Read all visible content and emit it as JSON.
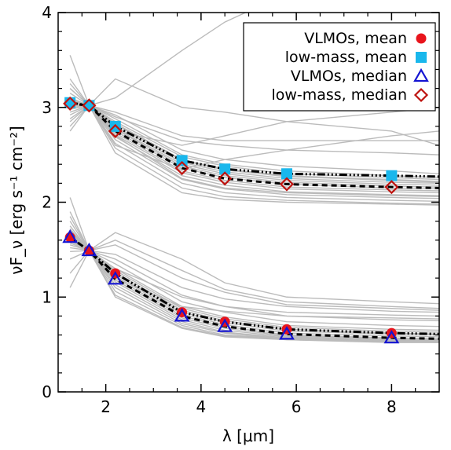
{
  "chart_data": {
    "type": "line",
    "title": "",
    "xlabel": "λ [μm]",
    "ylabel": "νF_ν [erg s⁻¹ cm⁻²]",
    "xlim": [
      1.0,
      9.0
    ],
    "ylim": [
      0.0,
      4.0
    ],
    "xticks": [
      2,
      4,
      6,
      8
    ],
    "yticks": [
      0,
      1,
      2,
      3,
      4
    ],
    "grid": false,
    "legend_position": "top-right",
    "x": [
      1.25,
      1.65,
      2.2,
      3.6,
      4.5,
      5.8,
      8.0
    ],
    "series": [
      {
        "name": "VLMOs, mean",
        "group": "VLMOs",
        "stat": "mean",
        "marker": "circle",
        "color": "#e8141c",
        "line_style": "dash-dot",
        "values": [
          1.63,
          1.49,
          1.25,
          0.84,
          0.74,
          0.66,
          0.62
        ]
      },
      {
        "name": "low-mass, mean",
        "group": "low-mass",
        "stat": "mean",
        "marker": "square",
        "color": "#19b7ec",
        "line_style": "dash-dot",
        "values": [
          3.05,
          3.02,
          2.8,
          2.44,
          2.35,
          2.3,
          2.28
        ]
      },
      {
        "name": "VLMOs, median",
        "group": "VLMOs",
        "stat": "median",
        "marker": "triangle",
        "color": "#1414d2",
        "line_style": "dashed",
        "values": [
          1.63,
          1.49,
          1.19,
          0.8,
          0.69,
          0.61,
          0.57
        ]
      },
      {
        "name": "low-mass, median",
        "group": "low-mass",
        "stat": "median",
        "marker": "diamond",
        "color": "#be1410",
        "line_style": "dashed",
        "values": [
          3.04,
          3.02,
          2.75,
          2.36,
          2.25,
          2.19,
          2.16
        ]
      }
    ],
    "individual_sources": {
      "color": "#bbbbbb",
      "low_mass_values": [
        [
          3.55,
          3.02,
          3.3,
          3.0,
          2.95,
          2.85,
          2.75,
          2.6
        ],
        [
          3.3,
          3.02,
          3.1,
          3.6,
          3.9,
          4.2,
          4.6,
          4.9
        ],
        [
          3.2,
          3.02,
          2.92,
          2.55,
          2.45,
          2.38,
          2.33,
          2.3
        ],
        [
          3.15,
          3.02,
          2.88,
          2.5,
          2.4,
          2.33,
          2.28,
          2.26
        ],
        [
          3.1,
          3.02,
          2.85,
          2.48,
          2.38,
          2.3,
          2.26,
          2.24
        ],
        [
          3.1,
          3.02,
          2.83,
          2.45,
          2.35,
          2.28,
          2.24,
          2.22
        ],
        [
          3.08,
          3.02,
          2.82,
          2.44,
          2.34,
          2.27,
          2.23,
          2.21
        ],
        [
          3.06,
          3.02,
          2.8,
          2.42,
          2.32,
          2.25,
          2.21,
          2.2
        ],
        [
          3.05,
          3.02,
          2.78,
          2.4,
          2.3,
          2.23,
          2.19,
          2.18
        ],
        [
          3.05,
          3.02,
          2.77,
          2.38,
          2.28,
          2.21,
          2.17,
          2.16
        ],
        [
          3.04,
          3.02,
          2.75,
          2.36,
          2.26,
          2.19,
          2.15,
          2.14
        ],
        [
          3.03,
          3.02,
          2.73,
          2.33,
          2.23,
          2.16,
          2.13,
          2.12
        ],
        [
          3.02,
          3.02,
          2.71,
          2.31,
          2.21,
          2.14,
          2.11,
          2.1
        ],
        [
          3.0,
          3.02,
          2.69,
          2.28,
          2.18,
          2.11,
          2.08,
          2.07
        ],
        [
          2.98,
          3.02,
          2.66,
          2.24,
          2.14,
          2.08,
          2.05,
          2.04
        ],
        [
          2.95,
          3.02,
          2.62,
          2.2,
          2.1,
          2.05,
          2.02,
          2.01
        ],
        [
          2.92,
          3.02,
          2.57,
          2.15,
          2.06,
          2.02,
          1.99,
          1.98
        ],
        [
          2.88,
          3.02,
          2.52,
          2.1,
          2.03,
          2.0,
          1.98,
          1.97
        ],
        [
          2.85,
          3.02,
          2.75,
          2.6,
          2.7,
          2.85,
          2.95,
          3.0
        ],
        [
          2.8,
          3.02,
          2.6,
          2.35,
          2.45,
          2.55,
          2.7,
          2.75
        ],
        [
          2.75,
          3.02,
          2.9,
          2.65,
          2.6,
          2.55,
          2.52,
          2.5
        ],
        [
          3.25,
          3.02,
          2.7,
          2.25,
          2.15,
          2.1,
          2.07,
          2.06
        ],
        [
          3.2,
          3.02,
          2.95,
          2.7,
          2.65,
          2.65,
          2.65,
          2.65
        ]
      ],
      "vlmo_values": [
        [
          2.05,
          1.49,
          1.68,
          1.4,
          1.15,
          1.0,
          0.95,
          0.93
        ],
        [
          1.9,
          1.49,
          1.55,
          1.2,
          1.05,
          0.92,
          0.88,
          0.86
        ],
        [
          1.8,
          1.49,
          1.4,
          1.02,
          0.9,
          0.8,
          0.76,
          0.75
        ],
        [
          1.75,
          1.49,
          1.35,
          0.95,
          0.84,
          0.74,
          0.7,
          0.69
        ],
        [
          1.72,
          1.49,
          1.3,
          0.9,
          0.79,
          0.7,
          0.66,
          0.65
        ],
        [
          1.7,
          1.49,
          1.28,
          0.88,
          0.77,
          0.68,
          0.64,
          0.63
        ],
        [
          1.68,
          1.49,
          1.26,
          0.86,
          0.75,
          0.66,
          0.62,
          0.61
        ],
        [
          1.66,
          1.49,
          1.24,
          0.84,
          0.73,
          0.64,
          0.61,
          0.6
        ],
        [
          1.65,
          1.49,
          1.22,
          0.82,
          0.71,
          0.62,
          0.59,
          0.58
        ],
        [
          1.63,
          1.49,
          1.2,
          0.8,
          0.69,
          0.6,
          0.57,
          0.56
        ],
        [
          1.61,
          1.49,
          1.18,
          0.78,
          0.67,
          0.59,
          0.56,
          0.55
        ],
        [
          1.59,
          1.49,
          1.16,
          0.76,
          0.65,
          0.58,
          0.55,
          0.54
        ],
        [
          1.57,
          1.49,
          1.13,
          0.74,
          0.63,
          0.57,
          0.54,
          0.54
        ],
        [
          1.55,
          1.49,
          1.1,
          0.72,
          0.62,
          0.56,
          0.54,
          0.53
        ],
        [
          1.52,
          1.49,
          1.06,
          0.7,
          0.6,
          0.56,
          0.53,
          0.53
        ],
        [
          1.48,
          1.49,
          1.02,
          0.68,
          0.59,
          0.55,
          0.53,
          0.52
        ],
        [
          1.4,
          1.49,
          1.0,
          0.67,
          0.58,
          0.55,
          0.52,
          0.52
        ],
        [
          1.25,
          1.49,
          1.3,
          1.0,
          0.9,
          0.84,
          0.81,
          0.8
        ],
        [
          1.1,
          1.49,
          1.45,
          1.1,
          0.98,
          0.9,
          0.85,
          0.84
        ],
        [
          1.6,
          1.49,
          1.6,
          1.28,
          1.08,
          0.95,
          0.9,
          0.88
        ],
        [
          1.85,
          1.49,
          1.2,
          0.9,
          0.85,
          0.8,
          0.78,
          0.77
        ]
      ],
      "x_with_edge": [
        1.25,
        1.65,
        2.2,
        3.6,
        4.5,
        5.8,
        8.0,
        9.0
      ]
    }
  }
}
